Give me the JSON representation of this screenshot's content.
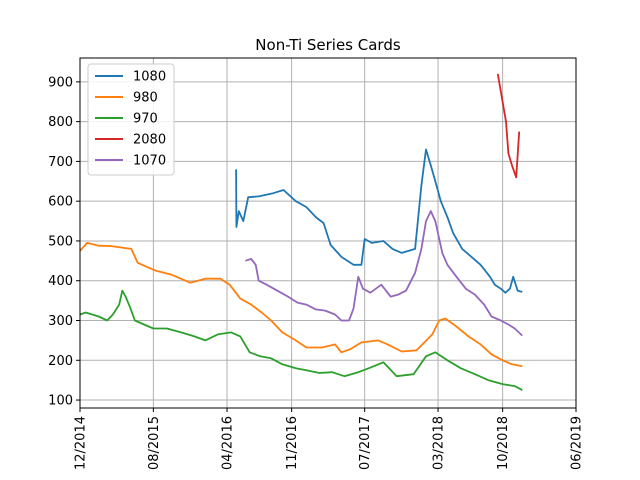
{
  "chart_data": {
    "type": "line",
    "title": "Non-Ti Series Cards",
    "xlabel": "",
    "ylabel": "",
    "x_ticks": [
      "12/2014",
      "08/2015",
      "04/2016",
      "11/2016",
      "07/2017",
      "03/2018",
      "10/2018",
      "06/2019"
    ],
    "y_ticks": [
      100,
      200,
      300,
      400,
      500,
      600,
      700,
      800,
      900
    ],
    "ylim": [
      80,
      960
    ],
    "grid": true,
    "legend_position": "top-left",
    "series": [
      {
        "name": "1080",
        "color": "#1f77b4",
        "points": [
          [
            "2016-05-01",
            680
          ],
          [
            "2016-05-02",
            535
          ],
          [
            "2016-05-10",
            575
          ],
          [
            "2016-05-25",
            550
          ],
          [
            "2016-06-10",
            610
          ],
          [
            "2016-07-15",
            612
          ],
          [
            "2016-09-01",
            620
          ],
          [
            "2016-10-05",
            628
          ],
          [
            "2016-11-15",
            600
          ],
          [
            "2016-12-20",
            585
          ],
          [
            "2017-01-20",
            560
          ],
          [
            "2017-02-15",
            545
          ],
          [
            "2017-03-10",
            490
          ],
          [
            "2017-04-15",
            460
          ],
          [
            "2017-05-25",
            440
          ],
          [
            "2017-06-20",
            440
          ],
          [
            "2017-07-01",
            505
          ],
          [
            "2017-07-25",
            495
          ],
          [
            "2017-09-01",
            500
          ],
          [
            "2017-10-01",
            480
          ],
          [
            "2017-11-01",
            470
          ],
          [
            "2017-12-15",
            480
          ],
          [
            "2018-01-05",
            640
          ],
          [
            "2018-01-20",
            730
          ],
          [
            "2018-02-05",
            690
          ],
          [
            "2018-02-20",
            650
          ],
          [
            "2018-03-10",
            600
          ],
          [
            "2018-04-01",
            560
          ],
          [
            "2018-04-20",
            520
          ],
          [
            "2018-05-20",
            480
          ],
          [
            "2018-06-20",
            460
          ],
          [
            "2018-07-20",
            440
          ],
          [
            "2018-08-20",
            410
          ],
          [
            "2018-09-05",
            390
          ],
          [
            "2018-09-25",
            380
          ],
          [
            "2018-10-10",
            370
          ],
          [
            "2018-10-25",
            380
          ],
          [
            "2018-11-05",
            410
          ],
          [
            "2018-11-20",
            375
          ],
          [
            "2018-12-05",
            372
          ]
        ]
      },
      {
        "name": "980",
        "color": "#ff7f0e",
        "points": [
          [
            "2014-12-01",
            475
          ],
          [
            "2014-12-25",
            495
          ],
          [
            "2015-02-01",
            488
          ],
          [
            "2015-03-15",
            487
          ],
          [
            "2015-05-01",
            482
          ],
          [
            "2015-05-20",
            480
          ],
          [
            "2015-06-10",
            445
          ],
          [
            "2015-07-10",
            435
          ],
          [
            "2015-08-10",
            425
          ],
          [
            "2015-10-01",
            415
          ],
          [
            "2015-12-01",
            395
          ],
          [
            "2016-01-20",
            405
          ],
          [
            "2016-03-10",
            405
          ],
          [
            "2016-04-10",
            390
          ],
          [
            "2016-05-15",
            355
          ],
          [
            "2016-06-20",
            340
          ],
          [
            "2016-07-25",
            320
          ],
          [
            "2016-08-25",
            300
          ],
          [
            "2016-10-01",
            270
          ],
          [
            "2016-11-15",
            250
          ],
          [
            "2016-12-20",
            232
          ],
          [
            "2017-02-10",
            232
          ],
          [
            "2017-03-25",
            240
          ],
          [
            "2017-04-15",
            220
          ],
          [
            "2017-05-15",
            228
          ],
          [
            "2017-06-20",
            245
          ],
          [
            "2017-08-15",
            250
          ],
          [
            "2017-09-15",
            240
          ],
          [
            "2017-11-01",
            222
          ],
          [
            "2017-12-20",
            225
          ],
          [
            "2018-02-10",
            265
          ],
          [
            "2018-03-05",
            300
          ],
          [
            "2018-03-25",
            305
          ],
          [
            "2018-05-01",
            285
          ],
          [
            "2018-06-10",
            260
          ],
          [
            "2018-07-20",
            240
          ],
          [
            "2018-08-25",
            215
          ],
          [
            "2018-10-01",
            200
          ],
          [
            "2018-11-01",
            190
          ],
          [
            "2018-12-05",
            185
          ]
        ]
      },
      {
        "name": "970",
        "color": "#2ca02c",
        "points": [
          [
            "2014-12-01",
            315
          ],
          [
            "2014-12-20",
            320
          ],
          [
            "2015-02-01",
            310
          ],
          [
            "2015-03-01",
            300
          ],
          [
            "2015-03-20",
            315
          ],
          [
            "2015-04-10",
            340
          ],
          [
            "2015-04-20",
            375
          ],
          [
            "2015-05-01",
            360
          ],
          [
            "2015-05-15",
            335
          ],
          [
            "2015-06-01",
            300
          ],
          [
            "2015-07-01",
            290
          ],
          [
            "2015-08-01",
            280
          ],
          [
            "2015-09-15",
            280
          ],
          [
            "2015-11-01",
            270
          ],
          [
            "2015-12-15",
            260
          ],
          [
            "2016-01-20",
            250
          ],
          [
            "2016-03-01",
            265
          ],
          [
            "2016-04-15",
            270
          ],
          [
            "2016-05-15",
            260
          ],
          [
            "2016-06-15",
            220
          ],
          [
            "2016-07-20",
            210
          ],
          [
            "2016-08-25",
            205
          ],
          [
            "2016-10-01",
            190
          ],
          [
            "2016-11-15",
            180
          ],
          [
            "2016-12-20",
            175
          ],
          [
            "2017-02-01",
            168
          ],
          [
            "2017-03-15",
            170
          ],
          [
            "2017-04-25",
            160
          ],
          [
            "2017-06-10",
            170
          ],
          [
            "2017-07-15",
            180
          ],
          [
            "2017-09-01",
            195
          ],
          [
            "2017-10-15",
            160
          ],
          [
            "2017-12-10",
            165
          ],
          [
            "2018-01-20",
            210
          ],
          [
            "2018-02-20",
            220
          ],
          [
            "2018-04-01",
            200
          ],
          [
            "2018-05-15",
            180
          ],
          [
            "2018-07-01",
            165
          ],
          [
            "2018-08-15",
            150
          ],
          [
            "2018-10-01",
            140
          ],
          [
            "2018-11-10",
            135
          ],
          [
            "2018-12-05",
            125
          ]
        ]
      },
      {
        "name": "2080",
        "color": "#d62728",
        "points": [
          [
            "2018-09-15",
            920
          ],
          [
            "2018-10-01",
            850
          ],
          [
            "2018-10-12",
            800
          ],
          [
            "2018-10-20",
            720
          ],
          [
            "2018-11-01",
            690
          ],
          [
            "2018-11-15",
            660
          ],
          [
            "2018-11-25",
            775
          ]
        ]
      },
      {
        "name": "1070",
        "color": "#9467bd",
        "points": [
          [
            "2016-06-01",
            450
          ],
          [
            "2016-06-20",
            455
          ],
          [
            "2016-07-05",
            440
          ],
          [
            "2016-07-15",
            400
          ],
          [
            "2016-08-10",
            390
          ],
          [
            "2016-09-15",
            375
          ],
          [
            "2016-10-20",
            360
          ],
          [
            "2016-11-20",
            345
          ],
          [
            "2016-12-20",
            340
          ],
          [
            "2017-01-20",
            328
          ],
          [
            "2017-02-20",
            325
          ],
          [
            "2017-03-25",
            315
          ],
          [
            "2017-04-15",
            300
          ],
          [
            "2017-05-10",
            300
          ],
          [
            "2017-05-25",
            330
          ],
          [
            "2017-06-10",
            410
          ],
          [
            "2017-06-25",
            380
          ],
          [
            "2017-07-20",
            370
          ],
          [
            "2017-08-25",
            390
          ],
          [
            "2017-09-25",
            360
          ],
          [
            "2017-10-20",
            365
          ],
          [
            "2017-11-15",
            375
          ],
          [
            "2017-12-15",
            420
          ],
          [
            "2018-01-05",
            480
          ],
          [
            "2018-01-20",
            550
          ],
          [
            "2018-02-05",
            575
          ],
          [
            "2018-02-20",
            550
          ],
          [
            "2018-03-15",
            470
          ],
          [
            "2018-04-01",
            440
          ],
          [
            "2018-05-01",
            410
          ],
          [
            "2018-06-01",
            380
          ],
          [
            "2018-07-01",
            365
          ],
          [
            "2018-08-01",
            340
          ],
          [
            "2018-08-25",
            310
          ],
          [
            "2018-09-25",
            300
          ],
          [
            "2018-10-20",
            290
          ],
          [
            "2018-11-10",
            280
          ],
          [
            "2018-12-05",
            262
          ]
        ]
      }
    ]
  }
}
